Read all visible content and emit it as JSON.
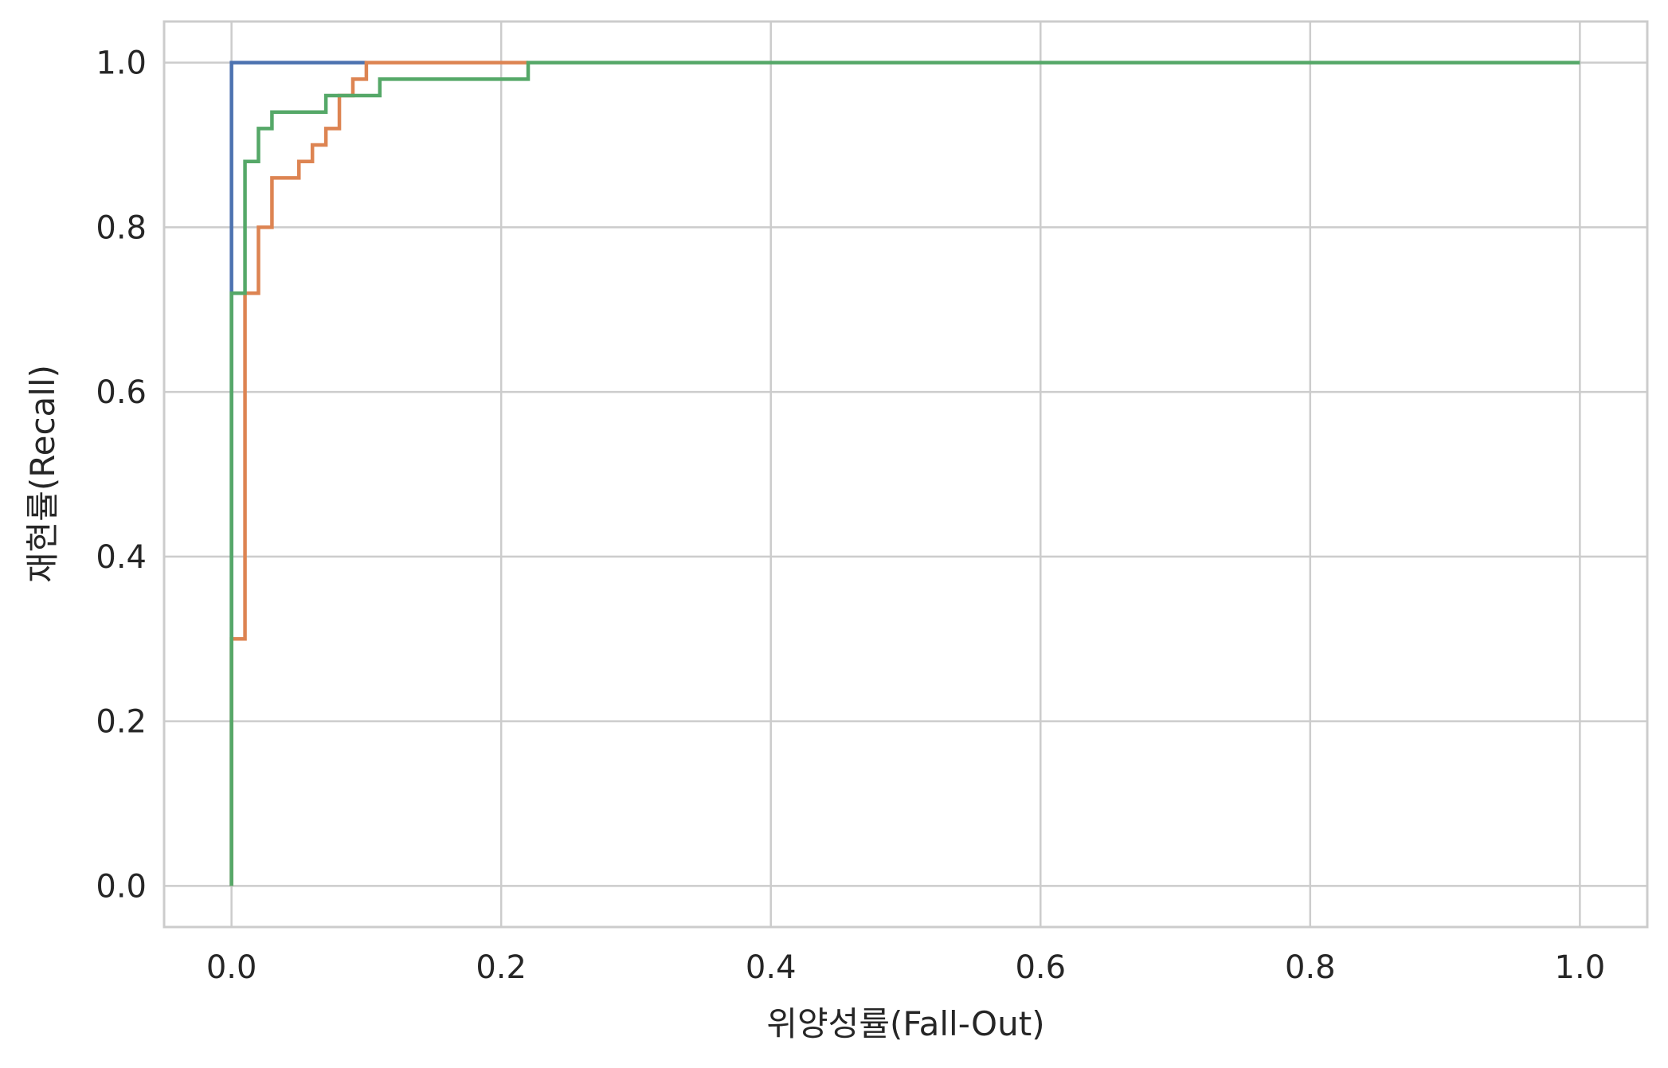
{
  "chart_data": {
    "type": "line",
    "title": "",
    "xlabel": "위양성률(Fall-Out)",
    "ylabel": "재현률(Recall)",
    "xlim": [
      -0.05,
      1.05
    ],
    "ylim": [
      -0.05,
      1.05
    ],
    "x_ticks": [
      "0.0",
      "0.2",
      "0.4",
      "0.6",
      "0.8",
      "1.0"
    ],
    "y_ticks": [
      "0.0",
      "0.2",
      "0.4",
      "0.6",
      "0.8",
      "1.0"
    ],
    "grid": true,
    "legend": "none",
    "series": [
      {
        "color": "#4c72b0",
        "step": true,
        "points": [
          [
            0.0,
            0.0
          ],
          [
            0.0,
            0.72
          ],
          [
            0.0,
            1.0
          ],
          [
            0.1,
            1.0
          ]
        ]
      },
      {
        "color": "#dd8452",
        "step": true,
        "points": [
          [
            0.0,
            0.0
          ],
          [
            0.0,
            0.3
          ],
          [
            0.01,
            0.3
          ],
          [
            0.01,
            0.72
          ],
          [
            0.02,
            0.72
          ],
          [
            0.02,
            0.8
          ],
          [
            0.03,
            0.8
          ],
          [
            0.03,
            0.86
          ],
          [
            0.05,
            0.86
          ],
          [
            0.05,
            0.88
          ],
          [
            0.06,
            0.88
          ],
          [
            0.06,
            0.9
          ],
          [
            0.07,
            0.9
          ],
          [
            0.07,
            0.92
          ],
          [
            0.08,
            0.92
          ],
          [
            0.08,
            0.96
          ],
          [
            0.09,
            0.96
          ],
          [
            0.09,
            0.98
          ],
          [
            0.1,
            0.98
          ],
          [
            0.1,
            1.0
          ],
          [
            0.22,
            1.0
          ]
        ]
      },
      {
        "color": "#55a868",
        "step": true,
        "points": [
          [
            0.0,
            0.0
          ],
          [
            0.0,
            0.72
          ],
          [
            0.01,
            0.72
          ],
          [
            0.01,
            0.88
          ],
          [
            0.02,
            0.88
          ],
          [
            0.02,
            0.92
          ],
          [
            0.03,
            0.92
          ],
          [
            0.03,
            0.94
          ],
          [
            0.07,
            0.94
          ],
          [
            0.07,
            0.96
          ],
          [
            0.11,
            0.96
          ],
          [
            0.11,
            0.98
          ],
          [
            0.22,
            0.98
          ],
          [
            0.22,
            1.0
          ],
          [
            1.0,
            1.0
          ]
        ]
      }
    ]
  }
}
